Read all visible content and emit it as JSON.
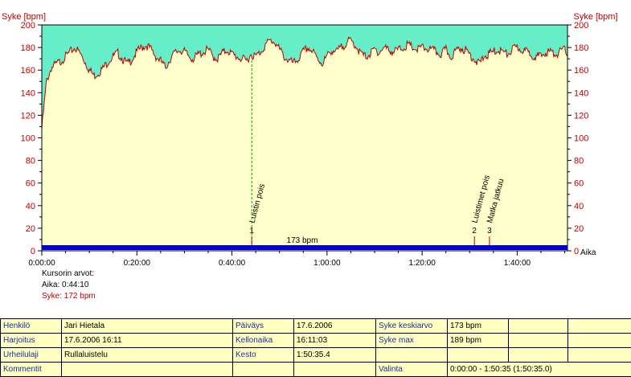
{
  "chart_data": {
    "type": "line",
    "ylabel_left": "Syke [bpm]",
    "ylabel_right": "Syke [bpm]",
    "xlabel": "Aika",
    "ylim": [
      0,
      200
    ],
    "xlim_seconds": [
      0,
      6635
    ],
    "y_ticks": [
      "0",
      "20",
      "40",
      "60",
      "80",
      "100",
      "120",
      "140",
      "160",
      "180",
      "200"
    ],
    "x_ticks": [
      {
        "t": 0,
        "label": "0:00:00"
      },
      {
        "t": 1200,
        "label": "0:20:00"
      },
      {
        "t": 2400,
        "label": "0:40:00"
      },
      {
        "t": 3600,
        "label": "1:00:00"
      },
      {
        "t": 4800,
        "label": "1:20:00"
      },
      {
        "t": 6000,
        "label": "1:40:00"
      }
    ],
    "series": [
      {
        "values_bpm_per_minute": [
          108,
          150,
          162,
          165,
          168,
          172,
          176,
          180,
          175,
          168,
          160,
          155,
          158,
          162,
          168,
          172,
          175,
          170,
          165,
          170,
          176,
          180,
          182,
          178,
          172,
          168,
          162,
          170,
          175,
          178,
          176,
          172,
          170,
          174,
          176,
          178,
          172,
          170,
          175,
          178,
          174,
          172,
          170,
          168,
          174,
          172,
          176,
          182,
          186,
          185,
          178,
          172,
          168,
          166,
          170,
          176,
          180,
          176,
          170,
          166,
          172,
          178,
          176,
          180,
          184,
          186,
          182,
          175,
          172,
          174,
          178,
          176,
          180,
          178,
          176,
          178,
          180,
          182,
          180,
          178,
          180,
          179,
          178,
          176,
          174,
          178,
          172,
          176,
          180,
          178,
          174,
          170,
          165,
          172,
          174,
          176,
          178,
          176,
          174,
          178,
          180,
          178,
          176,
          174,
          172,
          172,
          176,
          176,
          174,
          176,
          178,
          174
        ]
      }
    ],
    "average_label": "173 bpm",
    "markers": [
      {
        "number": "1",
        "t": 2650,
        "label": "Luistin pois"
      },
      {
        "number": "2",
        "t": 5460,
        "label": "Luistimet pois"
      },
      {
        "number": "3",
        "t": 5650,
        "label": "Matka jatkuu"
      }
    ],
    "cursor_t": 2650,
    "colors": {
      "line": "#c00000",
      "fill_above": "#66eec8",
      "fill_below": "#ffffcc",
      "bar": "#0000e0",
      "cursor": "#00aa00"
    }
  },
  "cursor_info": {
    "title": "Kursorin arvot:",
    "time": "Aika: 0:44:10",
    "hr": "Syke: 172 bpm"
  },
  "info_table": {
    "henkilo_label": "Henkilö",
    "henkilo_value": "Jari Hietala",
    "paivays_label": "Päiväys",
    "paivays_value": "17.6.2006",
    "syke_keskiarvo_label": "Syke keskiarvo",
    "syke_keskiarvo_value": "173 bpm",
    "harjoitus_label": "Harjoitus",
    "harjoitus_value": "17.6.2006 16:11",
    "kellonaika_label": "Kellonaika",
    "kellonaika_value": "16:11:03",
    "syke_max_label": "Syke max",
    "syke_max_value": "189 bpm",
    "urheilulaji_label": "Urheilulaji",
    "urheilulaji_value": "Rullaluistelu",
    "kesto_label": "Kesto",
    "kesto_value": "1:50:35.4",
    "kommentit_label": "Kommentit",
    "valinta_label": "Valinta",
    "valinta_value": "0:00:00 - 1:50:35 (1:50:35.0)"
  }
}
